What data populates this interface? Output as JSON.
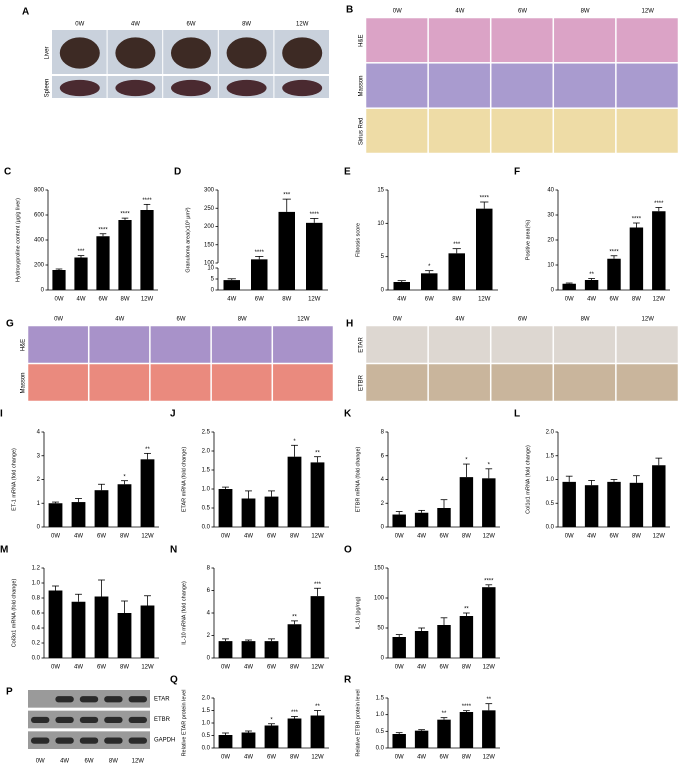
{
  "chart_data": [
    {
      "type": "bar",
      "panel": "C",
      "y_label": "Hydroxyproline content (μg/g liver)",
      "categories": [
        "0W",
        "4W",
        "6W",
        "8W",
        "12W"
      ],
      "values": [
        160,
        260,
        430,
        560,
        640
      ],
      "errors": [
        8,
        15,
        20,
        15,
        45
      ],
      "sig_labels": [
        null,
        "***",
        "****",
        "****",
        "****"
      ],
      "ylim": [
        0,
        800
      ],
      "yticks": [
        0,
        200,
        400,
        600,
        800
      ],
      "color": "#000000"
    },
    {
      "type": "bar",
      "panel": "D",
      "y_label": "Granuloma area(x10³ μm²)",
      "categories": [
        "4W",
        "6W",
        "8W",
        "12W"
      ],
      "values": [
        4.5,
        110,
        240,
        210
      ],
      "errors": [
        0.6,
        8,
        35,
        12
      ],
      "sig_labels": [
        null,
        "****",
        "***",
        "****"
      ],
      "ylim": [
        0,
        300
      ],
      "ybreak": [
        10,
        100
      ],
      "yticks": [
        0,
        5,
        10,
        100,
        150,
        200,
        250,
        300
      ],
      "color": "#000000"
    },
    {
      "type": "bar",
      "panel": "E",
      "y_label": "Fibrosis score",
      "categories": [
        "4W",
        "6W",
        "8W",
        "12W"
      ],
      "values": [
        1.2,
        2.5,
        5.5,
        12.2
      ],
      "errors": [
        0.2,
        0.4,
        0.7,
        1.0
      ],
      "sig_labels": [
        null,
        "*",
        "***",
        "****"
      ],
      "ylim": [
        0,
        15
      ],
      "yticks": [
        0,
        5,
        10,
        15
      ],
      "color": "#000000"
    },
    {
      "type": "bar",
      "panel": "F",
      "y_label": "Positive area(%)",
      "categories": [
        "0W",
        "4W",
        "6W",
        "8W",
        "12W"
      ],
      "values": [
        2.5,
        4,
        12.5,
        25,
        31.5
      ],
      "errors": [
        0.3,
        0.6,
        1.2,
        1.8,
        1.5
      ],
      "sig_labels": [
        null,
        "**",
        "****",
        "****",
        "****"
      ],
      "ylim": [
        0,
        40
      ],
      "yticks": [
        0,
        10,
        20,
        30,
        40
      ],
      "color": "#000000"
    },
    {
      "type": "bar",
      "panel": "I",
      "y_label": "ET-1 mRNA (fold change)",
      "categories": [
        "0W",
        "4W",
        "6W",
        "8W",
        "12W"
      ],
      "values": [
        1.0,
        1.05,
        1.55,
        1.8,
        2.85
      ],
      "errors": [
        0.05,
        0.15,
        0.25,
        0.15,
        0.25
      ],
      "sig_labels": [
        null,
        null,
        null,
        "*",
        "**"
      ],
      "ylim": [
        0,
        4
      ],
      "yticks": [
        0,
        1,
        2,
        3,
        4
      ],
      "color": "#000000"
    },
    {
      "type": "bar",
      "panel": "J",
      "y_label": "ETAR mRNA (fold change)",
      "categories": [
        "0W",
        "4W",
        "6W",
        "8W",
        "12W"
      ],
      "values": [
        1.0,
        0.75,
        0.8,
        1.85,
        1.7
      ],
      "errors": [
        0.05,
        0.2,
        0.15,
        0.3,
        0.15
      ],
      "sig_labels": [
        null,
        null,
        null,
        "*",
        "**"
      ],
      "ylim": [
        0,
        2.5
      ],
      "yticks": [
        {
          "value": 0,
          "label": "0.0"
        },
        0.5,
        {
          "value": 1,
          "label": "1.0"
        },
        1.5,
        {
          "value": 2,
          "label": "2.0"
        },
        2.5
      ],
      "color": "#000000"
    },
    {
      "type": "bar",
      "panel": "K",
      "y_label": "ETBR mRNA (fold change)",
      "categories": [
        "0W",
        "4W",
        "6W",
        "8W",
        "12W"
      ],
      "values": [
        1.05,
        1.2,
        1.6,
        4.2,
        4.1
      ],
      "errors": [
        0.25,
        0.2,
        0.7,
        1.1,
        0.8
      ],
      "sig_labels": [
        null,
        null,
        null,
        "*",
        "*"
      ],
      "ylim": [
        0,
        8
      ],
      "yticks": [
        0,
        2,
        4,
        6,
        8
      ],
      "color": "#000000"
    },
    {
      "type": "bar",
      "panel": "L",
      "y_label": "Col1α1 mRNA (fold change)",
      "categories": [
        "0W",
        "4W",
        "6W",
        "8W",
        "12W"
      ],
      "values": [
        0.95,
        0.88,
        0.95,
        0.93,
        1.3
      ],
      "errors": [
        0.12,
        0.1,
        0.05,
        0.15,
        0.15
      ],
      "sig_labels": [
        null,
        null,
        null,
        null,
        null
      ],
      "ylim": [
        0,
        2
      ],
      "yticks": [
        {
          "value": 0,
          "label": "0.0"
        },
        0.5,
        {
          "value": 1,
          "label": "1.0"
        },
        1.5,
        {
          "value": 2,
          "label": "2.0"
        }
      ],
      "color": "#000000"
    },
    {
      "type": "bar",
      "panel": "M",
      "y_label": "Col3α1 mRNA (fold change)",
      "categories": [
        "0W",
        "4W",
        "6W",
        "8W",
        "12W"
      ],
      "values": [
        0.9,
        0.75,
        0.82,
        0.6,
        0.7
      ],
      "errors": [
        0.06,
        0.1,
        0.22,
        0.16,
        0.13
      ],
      "sig_labels": [
        null,
        null,
        null,
        null,
        null
      ],
      "ylim": [
        0,
        1.2
      ],
      "yticks": [
        {
          "value": 0,
          "label": "0.0"
        },
        0.2,
        0.4,
        0.6,
        0.8,
        {
          "value": 1,
          "label": "1.0"
        },
        1.2
      ],
      "color": "#000000"
    },
    {
      "type": "bar",
      "panel": "N",
      "y_label": "IL-10 mRNA (fold change)",
      "categories": [
        "0W",
        "4W",
        "6W",
        "8W",
        "12W"
      ],
      "values": [
        1.5,
        1.5,
        1.5,
        3.0,
        5.5
      ],
      "errors": [
        0.2,
        0.1,
        0.2,
        0.3,
        0.7
      ],
      "sig_labels": [
        null,
        null,
        null,
        "**",
        "***"
      ],
      "ylim": [
        0,
        8
      ],
      "yticks": [
        0,
        2,
        4,
        6,
        8
      ],
      "color": "#000000"
    },
    {
      "type": "bar",
      "panel": "O",
      "y_label": "IL-10 (pg/mg)",
      "categories": [
        "0W",
        "4W",
        "6W",
        "8W",
        "12W"
      ],
      "values": [
        35,
        45,
        55,
        70,
        118
      ],
      "errors": [
        4,
        5,
        12,
        5,
        4
      ],
      "sig_labels": [
        null,
        null,
        null,
        "**",
        "****"
      ],
      "ylim": [
        0,
        150
      ],
      "yticks": [
        0,
        50,
        100,
        150
      ],
      "color": "#000000"
    },
    {
      "type": "bar",
      "panel": "Q",
      "y_label": "Relative ETAR protein level",
      "categories": [
        "0W",
        "4W",
        "6W",
        "8W",
        "12W"
      ],
      "values": [
        0.52,
        0.62,
        0.9,
        1.18,
        1.3
      ],
      "errors": [
        0.08,
        0.06,
        0.07,
        0.08,
        0.2
      ],
      "sig_labels": [
        null,
        null,
        "*",
        "***",
        "**"
      ],
      "ylim": [
        0,
        2
      ],
      "yticks": [
        {
          "value": 0,
          "label": "0.0"
        },
        0.5,
        {
          "value": 1,
          "label": "1.0"
        },
        1.5,
        {
          "value": 2,
          "label": "2.0"
        }
      ],
      "color": "#000000"
    },
    {
      "type": "bar",
      "panel": "R",
      "y_label": "Relative ETBR protein level",
      "categories": [
        "0W",
        "4W",
        "6W",
        "8W",
        "12W"
      ],
      "values": [
        0.42,
        0.52,
        0.85,
        1.08,
        1.13
      ],
      "errors": [
        0.04,
        0.03,
        0.06,
        0.04,
        0.2
      ],
      "sig_labels": [
        null,
        null,
        "**",
        "****",
        "**"
      ],
      "ylim": [
        0,
        1.5
      ],
      "yticks": [
        {
          "value": 0,
          "label": "0.0"
        },
        0.5,
        {
          "value": 1,
          "label": "1.0"
        },
        1.5
      ],
      "color": "#000000"
    }
  ],
  "image_panels": [
    {
      "panel": "A",
      "columns": [
        "0W",
        "4W",
        "6W",
        "8W",
        "12W"
      ],
      "rows": [
        "Liver",
        "Spleen"
      ]
    },
    {
      "panel": "B",
      "columns": [
        "0W",
        "4W",
        "6W",
        "8W",
        "12W"
      ],
      "rows": [
        "H&E",
        "Masson",
        "Sirius Red"
      ]
    },
    {
      "panel": "G",
      "columns": [
        "0W",
        "4W",
        "6W",
        "8W",
        "12W"
      ],
      "rows": [
        "H&E",
        "Masson"
      ]
    },
    {
      "panel": "H",
      "columns": [
        "0W",
        "4W",
        "6W",
        "8W",
        "12W"
      ],
      "rows": [
        "ETAR",
        "ETBR"
      ]
    },
    {
      "panel": "P",
      "columns": [
        "0W",
        "4W",
        "6W",
        "8W",
        "12W"
      ],
      "rows": [
        "ETAR",
        "ETBR",
        "GAPDH"
      ]
    }
  ]
}
